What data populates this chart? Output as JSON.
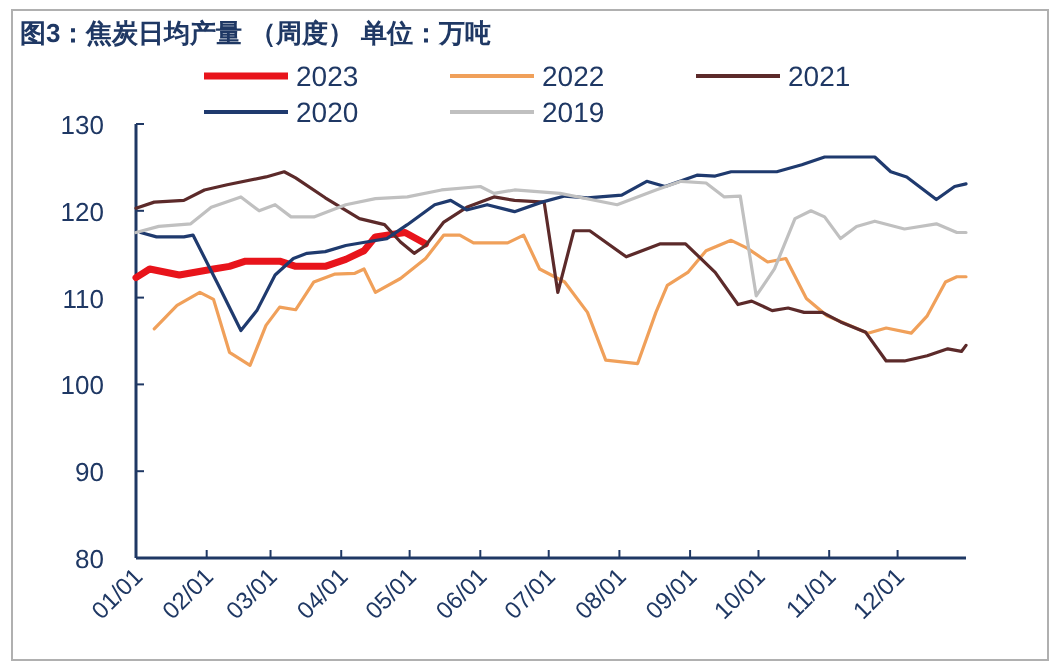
{
  "chart_data": {
    "type": "line",
    "title": "图3：焦炭日均产量 （周度）    单位：万吨",
    "xlim": [
      "--01-01",
      "--12-31"
    ],
    "xticks": [
      {
        "value": "--01-01",
        "label": "01/01"
      },
      {
        "value": "--02-01",
        "label": "02/01"
      },
      {
        "value": "--03-01",
        "label": "03/01"
      },
      {
        "value": "--04-01",
        "label": "04/01"
      },
      {
        "value": "--05-01",
        "label": "05/01"
      },
      {
        "value": "--06-01",
        "label": "06/01"
      },
      {
        "value": "--07-01",
        "label": "07/01"
      },
      {
        "value": "--08-01",
        "label": "08/01"
      },
      {
        "value": "--09-01",
        "label": "09/01"
      },
      {
        "value": "--10-01",
        "label": "10/01"
      },
      {
        "value": "--11-01",
        "label": "11/01"
      },
      {
        "value": "--12-01",
        "label": "12/01"
      }
    ],
    "ylim": [
      80,
      130
    ],
    "yticks": [
      80,
      90,
      100,
      110,
      120,
      130
    ],
    "grid": false,
    "legend": "top",
    "series": [
      {
        "name": "2023",
        "color": "#e8141b",
        "x": [
          "--01-01",
          "--01-07",
          "--01-20",
          "--02-04",
          "--02-11",
          "--02-18",
          "--03-05",
          "--03-12",
          "--03-25",
          "--04-03",
          "--04-11",
          "--04-16",
          "--04-29",
          "--05-08"
        ],
        "values": [
          112.3,
          113.3,
          112.6,
          113.3,
          113.6,
          114.2,
          114.2,
          113.6,
          113.6,
          114.4,
          115.4,
          117.0,
          117.5,
          116.2
        ]
      },
      {
        "name": "2022",
        "color": "#f0a05a",
        "x": [
          "--01-09",
          "--01-19",
          "--01-29",
          "--02-04",
          "--02-11",
          "--02-20",
          "--02-27",
          "--03-05",
          "--03-12",
          "--03-20",
          "--03-29",
          "--04-07",
          "--04-11",
          "--04-16",
          "--04-27",
          "--05-08",
          "--05-16",
          "--05-23",
          "--05-29",
          "--06-13",
          "--06-20",
          "--06-27",
          "--07-08",
          "--07-18",
          "--07-26",
          "--08-09",
          "--08-17",
          "--08-22",
          "--08-31",
          "--09-08",
          "--09-19",
          "--09-26",
          "--10-05",
          "--10-13",
          "--10-22",
          "--10-31",
          "--11-18",
          "--11-26",
          "--12-07",
          "--12-14",
          "--12-22",
          "--12-27",
          "--12-31"
        ],
        "values": [
          106.4,
          109.1,
          110.6,
          109.8,
          103.7,
          102.2,
          106.8,
          108.9,
          108.6,
          111.8,
          112.7,
          112.8,
          113.3,
          110.6,
          112.2,
          114.5,
          117.2,
          117.2,
          116.3,
          116.3,
          117.2,
          113.3,
          111.8,
          108.3,
          102.8,
          102.4,
          108.3,
          111.4,
          112.9,
          115.4,
          116.6,
          115.7,
          114.1,
          114.5,
          109.9,
          107.9,
          105.9,
          106.5,
          105.9,
          107.9,
          111.8,
          112.4,
          112.4
        ]
      },
      {
        "name": "2021",
        "color": "#5c2a2a",
        "x": [
          "--01-01",
          "--01-09",
          "--01-22",
          "--01-31",
          "--02-10",
          "--02-27",
          "--03-07",
          "--03-12",
          "--03-25",
          "--04-09",
          "--04-20",
          "--04-27",
          "--05-03",
          "--05-08",
          "--05-16",
          "--05-26",
          "--06-07",
          "--06-16",
          "--06-29",
          "--07-05",
          "--07-12",
          "--07-19",
          "--08-04",
          "--08-19",
          "--08-30",
          "--09-12",
          "--09-22",
          "--09-28",
          "--10-07",
          "--10-14",
          "--10-21",
          "--10-29",
          "--11-06",
          "--11-17",
          "--11-26",
          "--12-04",
          "--12-14",
          "--12-23",
          "--12-29",
          "--12-31"
        ],
        "values": [
          120.3,
          121.0,
          121.2,
          122.4,
          123.0,
          123.9,
          124.5,
          123.8,
          121.5,
          119.1,
          118.4,
          116.4,
          115.1,
          116.0,
          118.7,
          120.4,
          121.6,
          121.2,
          121.0,
          110.6,
          117.7,
          117.7,
          114.7,
          116.2,
          116.2,
          112.9,
          109.2,
          109.6,
          108.5,
          108.8,
          108.3,
          108.3,
          107.2,
          106.0,
          102.7,
          102.7,
          103.3,
          104.1,
          103.8,
          104.5
        ]
      },
      {
        "name": "2020",
        "color": "#1f3a6e",
        "x": [
          "--01-03",
          "--01-10",
          "--01-22",
          "--01-26",
          "--02-07",
          "--02-16",
          "--02-23",
          "--03-03",
          "--03-11",
          "--03-17",
          "--03-25",
          "--04-03",
          "--04-12",
          "--04-21",
          "--04-30",
          "--05-12",
          "--05-19",
          "--05-26",
          "--06-04",
          "--06-16",
          "--06-28",
          "--07-08",
          "--07-18",
          "--08-02",
          "--08-13",
          "--08-21",
          "--09-04",
          "--09-12",
          "--09-19",
          "--10-09",
          "--10-20",
          "--10-30",
          "--11-21",
          "--11-28",
          "--12-05",
          "--12-18",
          "--12-26",
          "--12-31"
        ],
        "values": [
          117.5,
          117.0,
          117.0,
          117.2,
          111.0,
          106.2,
          108.5,
          112.6,
          114.5,
          115.1,
          115.3,
          116.0,
          116.4,
          116.8,
          118.4,
          120.7,
          121.2,
          120.1,
          120.7,
          119.9,
          121.0,
          121.7,
          121.5,
          121.8,
          123.4,
          122.8,
          124.1,
          124.0,
          124.5,
          124.5,
          125.3,
          126.2,
          126.2,
          124.5,
          123.9,
          121.3,
          122.8,
          123.1
        ]
      },
      {
        "name": "2019",
        "color": "#c0c0c0",
        "x": [
          "--01-01",
          "--01-11",
          "--01-25",
          "--02-03",
          "--02-16",
          "--02-24",
          "--03-03",
          "--03-10",
          "--03-20",
          "--04-03",
          "--04-16",
          "--04-30",
          "--05-15",
          "--06-01",
          "--06-07",
          "--06-16",
          "--07-06",
          "--07-31",
          "--08-17",
          "--08-28",
          "--09-08",
          "--09-16",
          "--09-23",
          "--09-30",
          "--10-08",
          "--10-17",
          "--10-24",
          "--10-30",
          "--11-06",
          "--11-13",
          "--11-21",
          "--12-04",
          "--12-18",
          "--12-27",
          "--12-31"
        ],
        "values": [
          117.5,
          118.2,
          118.5,
          120.4,
          121.6,
          120.0,
          120.7,
          119.3,
          119.3,
          120.7,
          121.4,
          121.6,
          122.4,
          122.8,
          122.0,
          122.4,
          122.0,
          120.7,
          122.4,
          123.4,
          123.2,
          121.6,
          121.7,
          110.2,
          113.3,
          119.1,
          120.0,
          119.3,
          116.8,
          118.2,
          118.8,
          117.9,
          118.5,
          117.5,
          117.5
        ]
      }
    ]
  }
}
